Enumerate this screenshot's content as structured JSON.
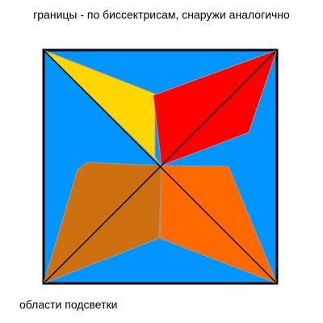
{
  "caption_top": "границы - по биссектрисам, снаружи аналогично",
  "caption_bottom": "области подсветки",
  "colors": {
    "background": "#0095FF",
    "border": "#000000",
    "region_top_left": "#FFD600",
    "region_top_right": "#FF0000",
    "region_bottom_left": "#CC7010",
    "region_bottom_right": "#FF6A00",
    "region_edge": "#9A9A9A",
    "diagonal": "#000000"
  }
}
